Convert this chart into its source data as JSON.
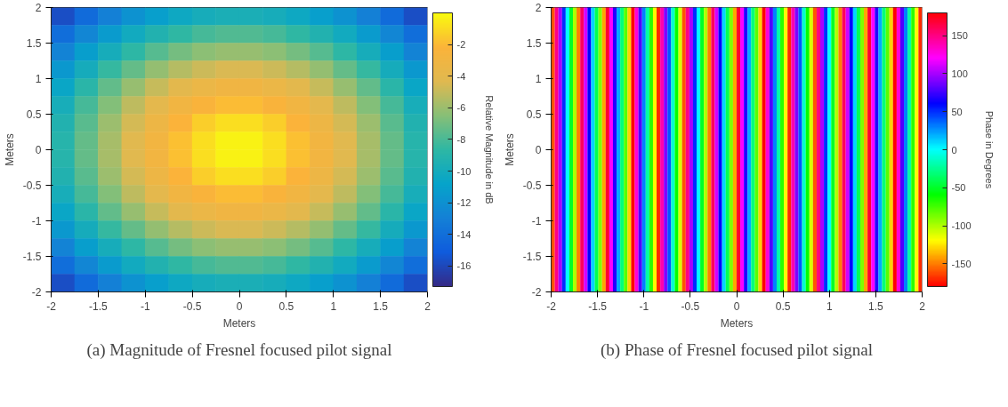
{
  "chart_data": [
    {
      "type": "heatmap",
      "xlabel": "Meters",
      "ylabel": "Meters",
      "clabel": "Relative Magnitude in dB",
      "grid": false,
      "xlim": [
        -2,
        2
      ],
      "ylim": [
        -2,
        2
      ],
      "xticks": [
        -2,
        -1.5,
        -1,
        -0.5,
        0,
        0.5,
        1,
        1.5,
        2
      ],
      "yticks": [
        -2,
        -1.5,
        -1,
        -0.5,
        0,
        0.5,
        1,
        1.5,
        2
      ],
      "clim": [
        -17.3,
        0
      ],
      "cticks": [
        -16,
        -14,
        -12,
        -10,
        -8,
        -6,
        -4,
        -2
      ],
      "annotations": [
        "(a) Magnitude of Fresnel focused pilot signal"
      ],
      "cells": [
        [
          -15.7,
          -14.2,
          -13.0,
          -11.9,
          -11.1,
          -10.4,
          -9.9,
          -9.7,
          -9.7,
          -9.9,
          -10.4,
          -11.1,
          -11.9,
          -13.0,
          -14.2,
          -15.7
        ],
        [
          -14.1,
          -12.7,
          -11.4,
          -10.2,
          -9.3,
          -8.6,
          -8.1,
          -7.8,
          -7.8,
          -8.1,
          -8.6,
          -9.3,
          -10.2,
          -11.4,
          -12.7,
          -14.1
        ],
        [
          -12.8,
          -11.2,
          -9.9,
          -8.7,
          -7.7,
          -6.9,
          -6.4,
          -6.1,
          -6.1,
          -6.4,
          -6.9,
          -7.7,
          -8.7,
          -9.9,
          -11.2,
          -12.8
        ],
        [
          -11.5,
          -10.0,
          -8.5,
          -7.3,
          -6.2,
          -5.4,
          -4.8,
          -4.5,
          -4.5,
          -4.8,
          -5.4,
          -6.2,
          -7.3,
          -8.5,
          -10.0,
          -11.5
        ],
        [
          -10.6,
          -8.9,
          -7.4,
          -6.1,
          -5.0,
          -4.1,
          -3.5,
          -3.1,
          -3.1,
          -3.5,
          -4.1,
          -5.0,
          -6.1,
          -7.4,
          -8.9,
          -10.6
        ],
        [
          -9.8,
          -8.1,
          -6.6,
          -5.2,
          -4.0,
          -3.0,
          -2.3,
          -1.9,
          -1.9,
          -2.3,
          -3.0,
          -4.0,
          -5.2,
          -6.6,
          -8.1,
          -9.8
        ],
        [
          -9.3,
          -7.6,
          -6.0,
          -4.6,
          -3.3,
          -2.2,
          -1.4,
          -0.9,
          -0.9,
          -1.4,
          -2.2,
          -3.3,
          -4.6,
          -6.0,
          -7.6,
          -9.3
        ],
        [
          -9.0,
          -7.3,
          -5.7,
          -4.2,
          -2.9,
          -1.8,
          -0.9,
          -0.3,
          -0.3,
          -0.9,
          -1.8,
          -2.9,
          -4.2,
          -5.7,
          -7.3,
          -9.0
        ],
        [
          -9.0,
          -7.3,
          -5.7,
          -4.2,
          -2.9,
          -1.8,
          -0.9,
          -0.3,
          -0.3,
          -0.9,
          -1.8,
          -2.9,
          -4.2,
          -5.7,
          -7.3,
          -9.0
        ],
        [
          -9.3,
          -7.6,
          -6.0,
          -4.6,
          -3.3,
          -2.2,
          -1.4,
          -0.9,
          -0.9,
          -1.4,
          -2.2,
          -3.3,
          -4.6,
          -6.0,
          -7.6,
          -9.3
        ],
        [
          -9.8,
          -8.1,
          -6.6,
          -5.2,
          -4.0,
          -3.0,
          -2.3,
          -1.9,
          -1.9,
          -2.3,
          -3.0,
          -4.0,
          -5.2,
          -6.6,
          -8.1,
          -9.8
        ],
        [
          -10.6,
          -8.9,
          -7.4,
          -6.1,
          -5.0,
          -4.1,
          -3.5,
          -3.1,
          -3.1,
          -3.5,
          -4.1,
          -5.0,
          -6.1,
          -7.4,
          -8.9,
          -10.6
        ],
        [
          -11.5,
          -10.0,
          -8.5,
          -7.3,
          -6.2,
          -5.4,
          -4.8,
          -4.5,
          -4.5,
          -4.8,
          -5.4,
          -6.2,
          -7.3,
          -8.5,
          -10.0,
          -11.5
        ],
        [
          -12.8,
          -11.2,
          -9.9,
          -8.7,
          -7.7,
          -6.9,
          -6.4,
          -6.1,
          -6.1,
          -6.4,
          -6.9,
          -7.7,
          -8.7,
          -9.9,
          -11.2,
          -12.8
        ],
        [
          -14.1,
          -12.7,
          -11.4,
          -10.2,
          -9.3,
          -8.6,
          -8.1,
          -7.8,
          -7.8,
          -8.1,
          -8.6,
          -9.3,
          -10.2,
          -11.4,
          -12.7,
          -14.1
        ],
        [
          -15.7,
          -14.2,
          -13.0,
          -11.9,
          -11.1,
          -10.4,
          -9.9,
          -9.7,
          -9.7,
          -9.9,
          -10.4,
          -11.1,
          -11.9,
          -13.0,
          -14.2,
          -15.7
        ]
      ]
    },
    {
      "type": "heatmap",
      "xlabel": "Meters",
      "ylabel": "Meters",
      "clabel": "Phase in Degrees",
      "grid": false,
      "xlim": [
        -2,
        2
      ],
      "ylim": [
        -2,
        2
      ],
      "xticks": [
        -2,
        -1.5,
        -1,
        -0.5,
        0,
        0.5,
        1,
        1.5,
        2
      ],
      "yticks": [
        -2,
        -1.5,
        -1,
        -0.5,
        0,
        0.5,
        1,
        1.5,
        2
      ],
      "clim": [
        -180,
        180
      ],
      "cticks": [
        -150,
        -100,
        -50,
        0,
        50,
        100,
        150
      ],
      "annotations": [
        "(b) Phase of Fresnel focused pilot signal"
      ],
      "cells": [
        [
          -160,
          150,
          100,
          50,
          0,
          -50,
          -100,
          -150,
          160,
          110,
          60,
          10,
          -40,
          -90,
          -140,
          170,
          120,
          70,
          20,
          -30,
          -80,
          -130,
          -180,
          130,
          80,
          30,
          -20,
          -70,
          -120,
          -170,
          140,
          90,
          40,
          -10,
          -60,
          -110,
          -160,
          150,
          100,
          50,
          0,
          -50,
          -100,
          -150,
          160,
          110,
          60,
          10,
          -40,
          -90,
          -140,
          170,
          120,
          70,
          20,
          -30,
          -80,
          -130,
          -180,
          130,
          80,
          30,
          -20,
          -70,
          -120,
          -170,
          140,
          90,
          40,
          -10,
          -60,
          -110,
          -160,
          150,
          100,
          50,
          0,
          -50,
          -100,
          -150,
          160,
          110,
          60,
          10,
          -40,
          -90,
          -140,
          170,
          120,
          70,
          20,
          -30,
          -80,
          -130,
          -180,
          130,
          80,
          30,
          -20,
          -70,
          -120,
          -170
        ]
      ]
    }
  ]
}
